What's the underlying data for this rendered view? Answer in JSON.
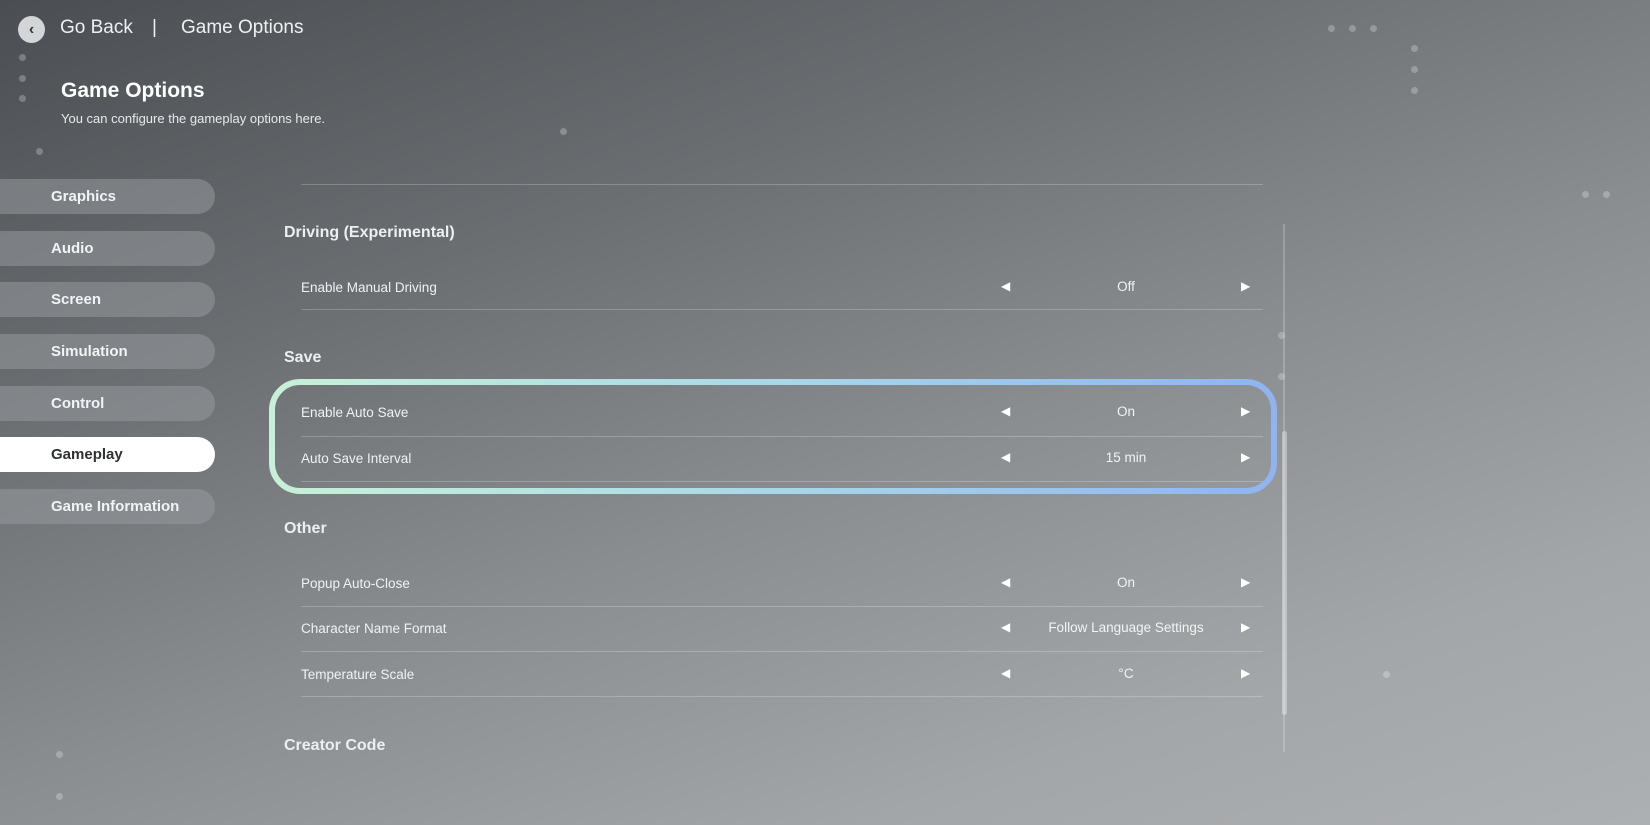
{
  "header": {
    "back_label": "Go Back",
    "separator": "|",
    "breadcrumb": "Game Options"
  },
  "page": {
    "title": "Game Options",
    "subtitle": "You can configure the gameplay options here."
  },
  "sidebar": {
    "items": [
      {
        "label": "Graphics"
      },
      {
        "label": "Audio"
      },
      {
        "label": "Screen"
      },
      {
        "label": "Simulation"
      },
      {
        "label": "Control"
      },
      {
        "label": "Gameplay",
        "active": true
      },
      {
        "label": "Game Information"
      }
    ]
  },
  "sections": {
    "driving": {
      "heading": "Driving (Experimental)",
      "rows": [
        {
          "label": "Enable Manual Driving",
          "value": "Off"
        }
      ]
    },
    "save": {
      "heading": "Save",
      "rows": [
        {
          "label": "Enable Auto Save",
          "value": "On"
        },
        {
          "label": "Auto Save Interval",
          "value": "15 min"
        }
      ]
    },
    "other": {
      "heading": "Other",
      "rows": [
        {
          "label": "Popup Auto-Close",
          "value": "On"
        },
        {
          "label": "Character Name Format",
          "value": "Follow Language Settings"
        },
        {
          "label": "Temperature Scale",
          "value": "°C"
        }
      ]
    },
    "creator": {
      "heading": "Creator Code"
    }
  },
  "icons": {
    "left": "◀",
    "right": "▶",
    "back": "‹"
  },
  "colors": {
    "highlight_start": "#c8f0d8",
    "highlight_end": "#8fb4f0",
    "active_tab": "#ffffff"
  }
}
